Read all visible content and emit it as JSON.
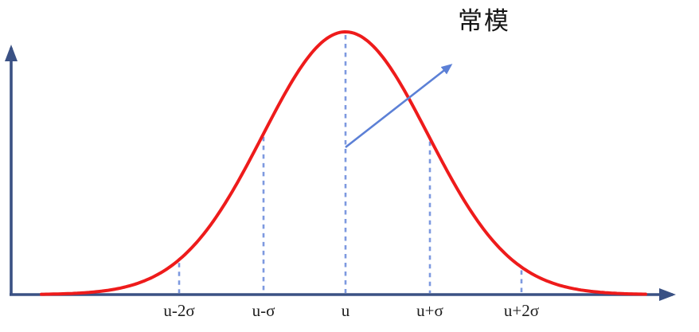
{
  "chart_data": {
    "type": "line",
    "title": "",
    "xlabel": "",
    "ylabel": "",
    "curve": {
      "distribution": "gaussian",
      "description": "standard normal (bell) curve peaking at mean u",
      "mean_label": "u",
      "sigma_symbol": "σ",
      "color": "#ee1b1b"
    },
    "ticks": [
      {
        "label": "u-2σ",
        "sigma": -2
      },
      {
        "label": "u-σ",
        "sigma": -1
      },
      {
        "label": "u",
        "sigma": 0
      },
      {
        "label": "u+σ",
        "sigma": 1
      },
      {
        "label": "u+2σ",
        "sigma": 2
      }
    ],
    "guidelines": "dashed vertical lines from curve to x-axis at each sigma tick",
    "annotation": {
      "label": "常模",
      "points_to": "curve center"
    },
    "axes": {
      "x_visible": true,
      "y_visible": true,
      "arrowheads": true,
      "gridlines": false,
      "color": "#3a5184"
    },
    "colors": {
      "guideline": "#7d99df",
      "annotation_arrow": "#5c80d6",
      "tick_label": "#1e1e1e",
      "annotation_text": "#141414"
    }
  }
}
